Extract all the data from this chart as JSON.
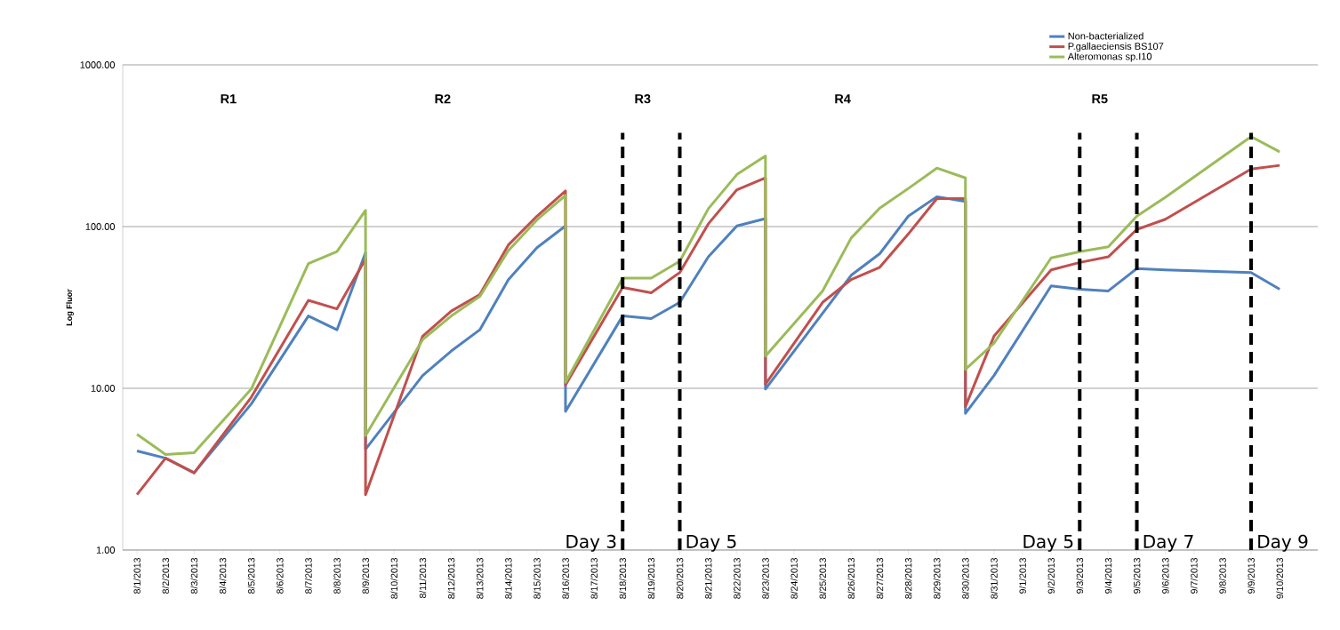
{
  "chart_data": {
    "type": "line",
    "ylabel": "Log Fluor",
    "log": "y",
    "grid": "y",
    "legend": "top right",
    "ylim": [
      1,
      1000
    ],
    "yticks": [
      {
        "value": 1,
        "label": "1.00"
      },
      {
        "value": 10,
        "label": "10.00"
      },
      {
        "value": 100,
        "label": "100.00"
      },
      {
        "value": 1000,
        "label": "1000.00"
      }
    ],
    "xlim": [
      "2013-07-31T12:00",
      "2013-09-11T08:00"
    ],
    "xticks": [
      {
        "value": "2013-08-01",
        "label": "8/1/2013"
      },
      {
        "value": "2013-08-02",
        "label": "8/2/2013"
      },
      {
        "value": "2013-08-03",
        "label": "8/3/2013"
      },
      {
        "value": "2013-08-04",
        "label": "8/4/2013"
      },
      {
        "value": "2013-08-05",
        "label": "8/5/2013"
      },
      {
        "value": "2013-08-06",
        "label": "8/6/2013"
      },
      {
        "value": "2013-08-07",
        "label": "8/7/2013"
      },
      {
        "value": "2013-08-08",
        "label": "8/8/2013"
      },
      {
        "value": "2013-08-09",
        "label": "8/9/2013"
      },
      {
        "value": "2013-08-10",
        "label": "8/10/2013"
      },
      {
        "value": "2013-08-11",
        "label": "8/11/2013"
      },
      {
        "value": "2013-08-12",
        "label": "8/12/2013"
      },
      {
        "value": "2013-08-13",
        "label": "8/13/2013"
      },
      {
        "value": "2013-08-14",
        "label": "8/14/2013"
      },
      {
        "value": "2013-08-15",
        "label": "8/15/2013"
      },
      {
        "value": "2013-08-16",
        "label": "8/16/2013"
      },
      {
        "value": "2013-08-17",
        "label": "8/17/2013"
      },
      {
        "value": "2013-08-18",
        "label": "8/18/2013"
      },
      {
        "value": "2013-08-19",
        "label": "8/19/2013"
      },
      {
        "value": "2013-08-20",
        "label": "8/20/2013"
      },
      {
        "value": "2013-08-21",
        "label": "8/21/2013"
      },
      {
        "value": "2013-08-22",
        "label": "8/22/2013"
      },
      {
        "value": "2013-08-23",
        "label": "8/23/2013"
      },
      {
        "value": "2013-08-24",
        "label": "8/24/2013"
      },
      {
        "value": "2013-08-25",
        "label": "8/25/2013"
      },
      {
        "value": "2013-08-26",
        "label": "8/26/2013"
      },
      {
        "value": "2013-08-27",
        "label": "8/27/2013"
      },
      {
        "value": "2013-08-28",
        "label": "8/28/2013"
      },
      {
        "value": "2013-08-29",
        "label": "8/29/2013"
      },
      {
        "value": "2013-08-30",
        "label": "8/30/2013"
      },
      {
        "value": "2013-08-31",
        "label": "8/31/2013"
      },
      {
        "value": "2013-09-01",
        "label": "9/1/2013"
      },
      {
        "value": "2013-09-02",
        "label": "9/2/2013"
      },
      {
        "value": "2013-09-03",
        "label": "9/3/2013"
      },
      {
        "value": "2013-09-04",
        "label": "9/4/2013"
      },
      {
        "value": "2013-09-05",
        "label": "9/5/2013"
      },
      {
        "value": "2013-09-06",
        "label": "9/6/2013"
      },
      {
        "value": "2013-09-07",
        "label": "9/7/2013"
      },
      {
        "value": "2013-09-08",
        "label": "9/8/2013"
      },
      {
        "value": "2013-09-09",
        "label": "9/9/2013"
      },
      {
        "value": "2013-09-10",
        "label": "9/10/2013"
      }
    ],
    "series": [
      {
        "name": "Non-bacterialized",
        "color": "#4f81bd",
        "x": [
          "2013-08-01",
          "2013-08-02",
          "2013-08-03",
          "2013-08-05",
          "2013-08-07",
          "2013-08-08",
          "2013-08-09",
          "2013-08-09",
          "2013-08-11",
          "2013-08-12",
          "2013-08-13",
          "2013-08-14",
          "2013-08-15",
          "2013-08-16",
          "2013-08-16",
          "2013-08-18",
          "2013-08-19",
          "2013-08-20",
          "2013-08-21",
          "2013-08-22",
          "2013-08-23",
          "2013-08-23",
          "2013-08-26",
          "2013-08-27",
          "2013-08-28",
          "2013-08-29",
          "2013-08-30",
          "2013-08-30",
          "2013-08-31",
          "2013-09-02",
          "2013-09-03",
          "2013-09-04",
          "2013-09-05",
          "2013-09-06",
          "2013-09-09",
          "2013-09-10"
        ],
        "values": [
          4.1,
          3.7,
          3.0,
          8.0,
          28,
          23,
          69,
          4.2,
          12,
          17,
          23,
          47,
          74,
          101,
          7.2,
          28,
          27,
          34,
          65,
          101,
          112,
          9.9,
          50,
          68,
          116,
          153,
          143,
          7.0,
          12,
          43,
          41,
          40,
          55,
          54,
          52,
          41
        ]
      },
      {
        "name": "P.gallaeciensis BS107",
        "color": "#c0504d",
        "x": [
          "2013-08-01",
          "2013-08-02",
          "2013-08-03",
          "2013-08-05",
          "2013-08-07",
          "2013-08-08",
          "2013-08-09",
          "2013-08-09",
          "2013-08-11",
          "2013-08-12",
          "2013-08-13",
          "2013-08-14",
          "2013-08-15",
          "2013-08-16",
          "2013-08-16",
          "2013-08-18",
          "2013-08-19",
          "2013-08-20",
          "2013-08-21",
          "2013-08-22",
          "2013-08-23",
          "2013-08-23",
          "2013-08-25",
          "2013-08-26",
          "2013-08-27",
          "2013-08-28",
          "2013-08-29",
          "2013-08-30",
          "2013-08-30",
          "2013-08-31",
          "2013-09-02",
          "2013-09-03",
          "2013-09-04",
          "2013-09-05",
          "2013-09-06",
          "2013-09-09",
          "2013-09-10"
        ],
        "values": [
          2.2,
          3.7,
          3.0,
          8.8,
          35,
          31,
          63,
          2.2,
          21,
          30,
          38,
          77,
          116,
          166,
          10.5,
          42,
          39,
          52,
          104,
          169,
          200,
          10.6,
          34,
          47,
          56,
          90,
          149,
          149,
          7.7,
          21,
          54,
          60,
          65,
          96,
          111,
          227,
          239
        ]
      },
      {
        "name": "Alteromonas sp.I10",
        "color": "#9bbb59",
        "x": [
          "2013-08-01",
          "2013-08-02",
          "2013-08-03",
          "2013-08-05",
          "2013-08-07",
          "2013-08-08",
          "2013-08-09",
          "2013-08-09",
          "2013-08-11",
          "2013-08-12",
          "2013-08-13",
          "2013-08-14",
          "2013-08-15",
          "2013-08-16",
          "2013-08-16",
          "2013-08-18",
          "2013-08-19",
          "2013-08-20",
          "2013-08-21",
          "2013-08-22",
          "2013-08-23",
          "2013-08-23",
          "2013-08-25",
          "2013-08-26",
          "2013-08-27",
          "2013-08-28",
          "2013-08-29",
          "2013-08-30",
          "2013-08-30",
          "2013-08-31",
          "2013-09-02",
          "2013-09-03",
          "2013-09-04",
          "2013-09-05",
          "2013-09-06",
          "2013-09-09",
          "2013-09-10"
        ],
        "values": [
          5.2,
          3.9,
          4.0,
          9.9,
          59,
          70,
          126,
          5.1,
          20,
          28,
          37,
          71,
          110,
          156,
          10.9,
          48,
          48,
          61,
          129,
          210,
          273,
          15.8,
          40,
          85,
          130,
          172,
          230,
          200,
          13.1,
          19,
          64,
          70,
          75,
          116,
          152,
          360,
          290
        ]
      }
    ],
    "ref_lines": [
      {
        "axis": "x",
        "value": "2013-08-18",
        "color": "#000000",
        "line_style": "dashed",
        "label": "Day 3"
      },
      {
        "axis": "x",
        "value": "2013-08-20",
        "color": "#000000",
        "line_style": "dashed",
        "label": "Day 5"
      },
      {
        "axis": "x",
        "value": "2013-09-03",
        "color": "#000000",
        "line_style": "dashed",
        "label": "Day 5"
      },
      {
        "axis": "x",
        "value": "2013-09-05",
        "color": "#000000",
        "line_style": "dashed",
        "label": "Day 7"
      },
      {
        "axis": "x",
        "value": "2013-09-09",
        "color": "#000000",
        "line_style": "dashed",
        "label": "Day 9"
      }
    ],
    "annotations": [
      "R1",
      "R2",
      "R3",
      "R4",
      "R5"
    ]
  }
}
